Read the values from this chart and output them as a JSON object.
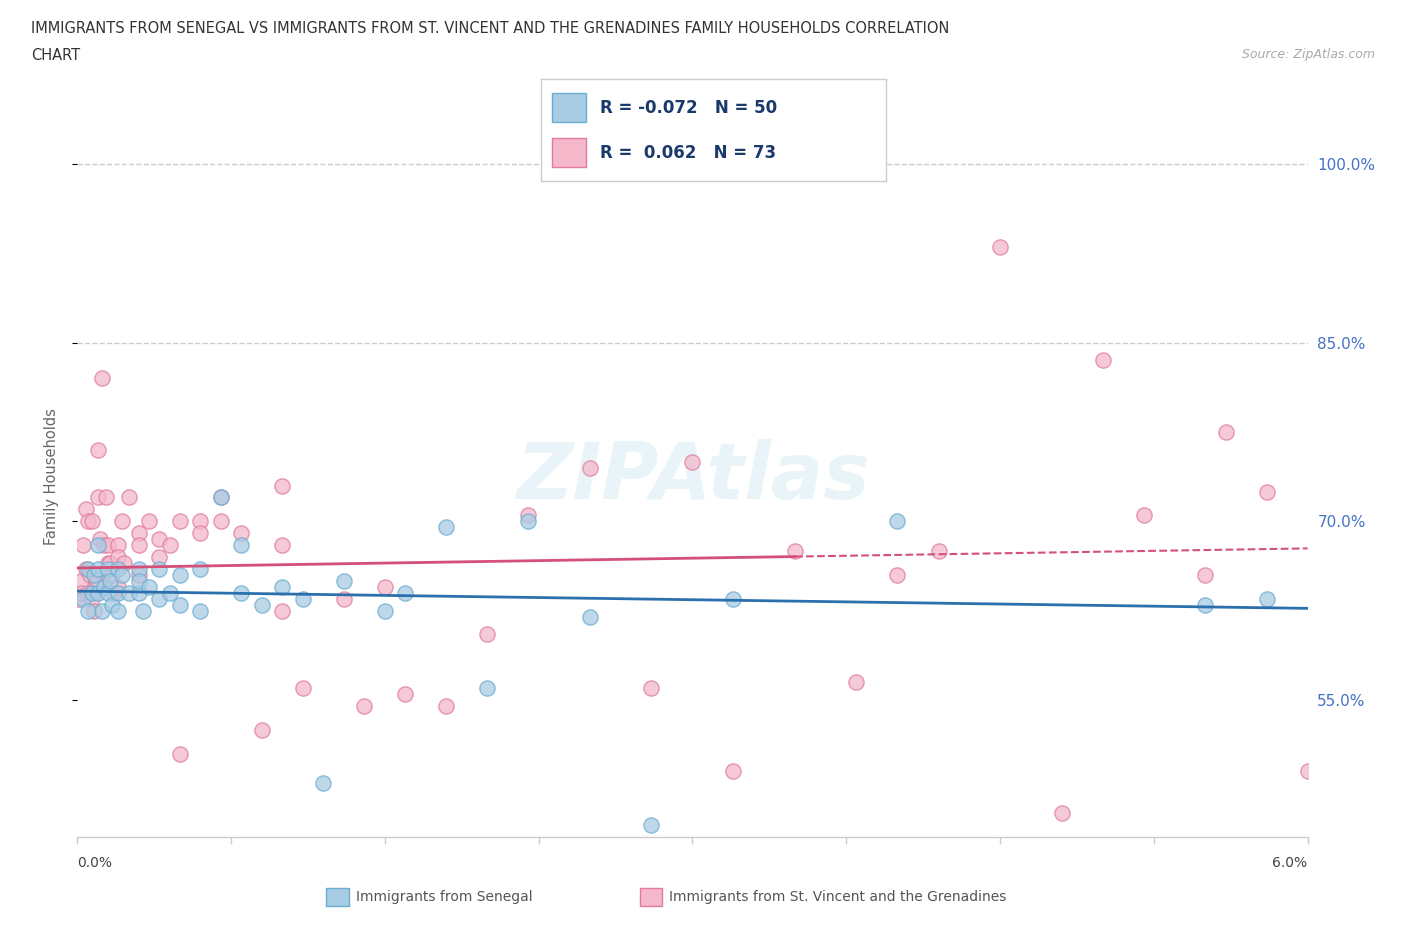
{
  "title_line1": "IMMIGRANTS FROM SENEGAL VS IMMIGRANTS FROM ST. VINCENT AND THE GRENADINES FAMILY HOUSEHOLDS CORRELATION",
  "title_line2": "CHART",
  "source": "Source: ZipAtlas.com",
  "ylabel": "Family Households",
  "ytick_labels": [
    "55.0%",
    "70.0%",
    "85.0%",
    "100.0%"
  ],
  "ytick_values": [
    0.55,
    0.7,
    0.85,
    1.0
  ],
  "xlim": [
    0.0,
    0.06
  ],
  "ylim": [
    0.435,
    1.04
  ],
  "legend_label1": "Immigrants from Senegal",
  "legend_label2": "Immigrants from St. Vincent and the Grenadines",
  "R1": -0.072,
  "N1": 50,
  "R2": 0.062,
  "N2": 73,
  "color_blue": "#a8cce4",
  "color_pink": "#f4b8ca",
  "color_blue_edge": "#6aacd0",
  "color_pink_edge": "#e07aa0",
  "color_blue_line": "#2c6fad",
  "color_pink_line": "#d45079",
  "watermark": "ZIPAtlas",
  "blue_x": [
    0.0003,
    0.0005,
    0.0005,
    0.0007,
    0.0008,
    0.001,
    0.001,
    0.001,
    0.0012,
    0.0013,
    0.0015,
    0.0015,
    0.0016,
    0.0017,
    0.002,
    0.002,
    0.002,
    0.0022,
    0.0025,
    0.003,
    0.003,
    0.003,
    0.0032,
    0.0035,
    0.004,
    0.004,
    0.0045,
    0.005,
    0.005,
    0.006,
    0.006,
    0.007,
    0.008,
    0.008,
    0.009,
    0.01,
    0.011,
    0.012,
    0.013,
    0.015,
    0.016,
    0.018,
    0.02,
    0.022,
    0.025,
    0.028,
    0.032,
    0.04,
    0.055,
    0.058
  ],
  "blue_y": [
    0.635,
    0.625,
    0.66,
    0.64,
    0.655,
    0.64,
    0.66,
    0.68,
    0.625,
    0.645,
    0.66,
    0.64,
    0.65,
    0.63,
    0.66,
    0.64,
    0.625,
    0.655,
    0.64,
    0.66,
    0.64,
    0.65,
    0.625,
    0.645,
    0.66,
    0.635,
    0.64,
    0.655,
    0.63,
    0.66,
    0.625,
    0.72,
    0.64,
    0.68,
    0.63,
    0.645,
    0.635,
    0.48,
    0.65,
    0.625,
    0.64,
    0.695,
    0.56,
    0.7,
    0.62,
    0.445,
    0.635,
    0.7,
    0.63,
    0.635
  ],
  "pink_x": [
    0.0001,
    0.0002,
    0.0002,
    0.0003,
    0.0004,
    0.0004,
    0.0005,
    0.0005,
    0.0006,
    0.0007,
    0.0007,
    0.0008,
    0.0009,
    0.001,
    0.001,
    0.001,
    0.0011,
    0.0012,
    0.0013,
    0.0014,
    0.0015,
    0.0015,
    0.0016,
    0.0017,
    0.0018,
    0.002,
    0.002,
    0.002,
    0.0022,
    0.0023,
    0.0025,
    0.003,
    0.003,
    0.003,
    0.0035,
    0.004,
    0.004,
    0.0045,
    0.005,
    0.005,
    0.006,
    0.006,
    0.007,
    0.007,
    0.008,
    0.009,
    0.01,
    0.01,
    0.011,
    0.013,
    0.014,
    0.015,
    0.016,
    0.018,
    0.02,
    0.022,
    0.025,
    0.028,
    0.03,
    0.032,
    0.035,
    0.038,
    0.04,
    0.042,
    0.045,
    0.048,
    0.05,
    0.052,
    0.055,
    0.056,
    0.058,
    0.06,
    0.01
  ],
  "pink_y": [
    0.635,
    0.65,
    0.64,
    0.68,
    0.66,
    0.71,
    0.64,
    0.7,
    0.655,
    0.635,
    0.7,
    0.625,
    0.65,
    0.76,
    0.72,
    0.65,
    0.685,
    0.82,
    0.68,
    0.72,
    0.68,
    0.665,
    0.665,
    0.655,
    0.64,
    0.68,
    0.67,
    0.645,
    0.7,
    0.665,
    0.72,
    0.69,
    0.68,
    0.655,
    0.7,
    0.685,
    0.67,
    0.68,
    0.505,
    0.7,
    0.7,
    0.69,
    0.7,
    0.72,
    0.69,
    0.525,
    0.68,
    0.625,
    0.56,
    0.635,
    0.545,
    0.645,
    0.555,
    0.545,
    0.605,
    0.705,
    0.745,
    0.56,
    0.75,
    0.49,
    0.675,
    0.565,
    0.655,
    0.675,
    0.93,
    0.455,
    0.835,
    0.705,
    0.655,
    0.775,
    0.725,
    0.49,
    0.73
  ]
}
